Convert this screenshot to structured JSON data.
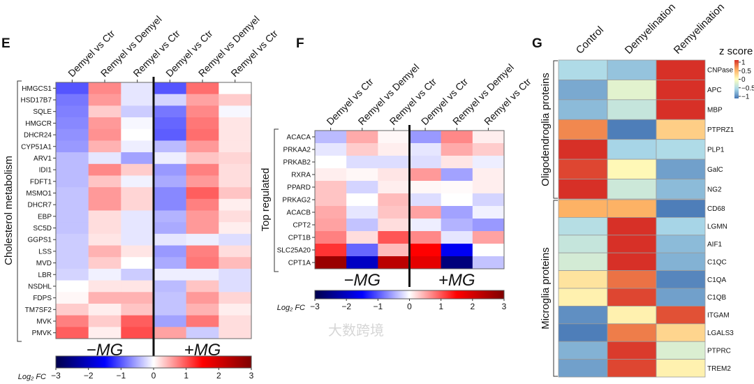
{
  "watermark": "大数跨境",
  "chart_data": [
    {
      "panel": "E",
      "type": "heatmap",
      "ylabel": "Cholesterol metabolism",
      "columns": [
        "Demyel vs Ctr",
        "Remyel vs Demyel",
        "Remyel vs Ctr",
        "Demyel vs Ctr",
        "Remyel vs Demyel",
        "Remyel vs Ctr"
      ],
      "groups": [
        "−MG",
        "+MG"
      ],
      "rows": [
        "HMGCS1",
        "HSD17B7",
        "SQLE",
        "HMGCR",
        "DHCR24",
        "CYP51A1",
        "ARV1",
        "IDI1",
        "FDFT1",
        "MSMO1",
        "DHCR7",
        "EBP",
        "SC5D",
        "GGPS1",
        "LSS",
        "MVD",
        "LBR",
        "NSDHL",
        "FDPS",
        "TM7SF2",
        "MVK",
        "PMVK"
      ],
      "values": [
        [
          -1.0,
          0.7,
          -0.15,
          -1.0,
          0.85,
          0
        ],
        [
          -0.8,
          0.6,
          -0.15,
          -0.25,
          0.55,
          0.3
        ],
        [
          -0.75,
          0.3,
          -0.3,
          -0.8,
          0.7,
          -0.05
        ],
        [
          -0.7,
          0.6,
          -0.05,
          -0.9,
          0.8,
          0.15
        ],
        [
          -0.65,
          0.65,
          0,
          -0.95,
          0.85,
          0.15
        ],
        [
          -0.6,
          0.45,
          -0.1,
          -0.4,
          0.6,
          0.15
        ],
        [
          -0.4,
          -0.15,
          -0.55,
          -0.1,
          0.35,
          0.25
        ],
        [
          -0.4,
          0.7,
          0.3,
          -0.6,
          0.75,
          0.2
        ],
        [
          -0.4,
          0.35,
          -0.08,
          -0.5,
          0.6,
          0.2
        ],
        [
          -0.35,
          0.6,
          0.25,
          -0.7,
          0.95,
          0.35
        ],
        [
          -0.35,
          0.6,
          0.25,
          -0.7,
          0.75,
          0.1
        ],
        [
          -0.35,
          0.2,
          -0.15,
          -0.45,
          0.6,
          0.2
        ],
        [
          -0.35,
          0.2,
          -0.15,
          -0.5,
          0.6,
          0.1
        ],
        [
          -0.3,
          0.15,
          -0.15,
          -0.15,
          -0.1,
          -0.2
        ],
        [
          -0.3,
          0.45,
          0.15,
          -0.6,
          0.75,
          0.2
        ],
        [
          -0.3,
          0.3,
          0,
          -0.5,
          0.8,
          0.4
        ],
        [
          -0.25,
          -0.08,
          -0.3,
          -0.1,
          -0.1,
          -0.2
        ],
        [
          0,
          0.15,
          0.15,
          -0.4,
          0.35,
          -0.2
        ],
        [
          0.05,
          0.45,
          0.45,
          -0.35,
          0.6,
          0.25
        ],
        [
          0.3,
          0.1,
          0.35,
          -0.35,
          0.45,
          0.1
        ],
        [
          0.75,
          0.3,
          0.95,
          -0.55,
          0.8,
          0.2
        ],
        [
          0.95,
          0.1,
          1.05,
          0.55,
          -0.3,
          0.2
        ]
      ],
      "colorbar": {
        "label": "Log₂ FC",
        "range": [
          -3,
          3
        ],
        "ticks": [
          "−3",
          "−2",
          "−1",
          "0",
          "1",
          "2",
          "3"
        ],
        "colormap": "seismic"
      }
    },
    {
      "panel": "F",
      "type": "heatmap",
      "ylabel": "Top regulated",
      "columns": [
        "Demyel vs Ctr",
        "Remyel vs Demyel",
        "Remyel vs Ctr",
        "Demyel vs Ctr",
        "Remyel vs Demyel",
        "Remyel vs Ctr"
      ],
      "groups": [
        "−MG",
        "+MG"
      ],
      "rows": [
        "ACACA",
        "PRKAA2",
        "PRKAB2",
        "RXRA",
        "PPARD",
        "PRKAG2",
        "ACACB",
        "CPT2",
        "CPT1B",
        "SLC25A20",
        "CPT1A"
      ],
      "values": [
        [
          -0.4,
          0.5,
          0.05,
          -0.6,
          0.7,
          0.1
        ],
        [
          -0.15,
          0.3,
          0.1,
          -0.15,
          0.5,
          0.3
        ],
        [
          0,
          -0.2,
          -0.2,
          -0.2,
          0.15,
          -0.1
        ],
        [
          0.1,
          0.05,
          0.15,
          0.6,
          -0.55,
          0.1
        ],
        [
          0.35,
          -0.25,
          0.1,
          0.05,
          0.03,
          0.1
        ],
        [
          0.35,
          0,
          0.4,
          -0.2,
          0,
          -0.25
        ],
        [
          0.5,
          -0.15,
          0.35,
          0.55,
          -0.55,
          -0.08
        ],
        [
          0.55,
          -0.35,
          0.2,
          -0.1,
          -0.45,
          -0.6
        ],
        [
          0.75,
          0.2,
          1.0,
          0.7,
          -0.15,
          0.55
        ],
        [
          1.2,
          -0.9,
          0.4,
          1.5,
          -1.6,
          0
        ],
        [
          2.7,
          -2.0,
          2.3,
          1.8,
          -2.6,
          -0.35
        ]
      ],
      "colorbar": {
        "label": "Log₂ FC",
        "range": [
          -3,
          3
        ],
        "ticks": [
          "−3",
          "−2",
          "−1",
          "0",
          "1",
          "2",
          "3"
        ],
        "colormap": "seismic"
      }
    },
    {
      "panel": "G",
      "type": "heatmap",
      "columns": [
        "Control",
        "Demyelination",
        "Remyelination"
      ],
      "row_groups": [
        {
          "label": "Oligodendroglia proteins",
          "rows": [
            "CNPase",
            "APC",
            "MBP",
            "PTPRZ1",
            "PLP1",
            "GalC",
            "NG2"
          ]
        },
        {
          "label": "Microglia proteins",
          "rows": [
            "CD68",
            "LGMN",
            "AIF1",
            "C1QC",
            "C1QA",
            "C1QB",
            "ITGAM",
            "LGALS3",
            "PTPRC",
            "TREM2"
          ]
        }
      ],
      "values": [
        [
          -0.55,
          -0.7,
          1.15
        ],
        [
          -0.85,
          -0.2,
          1.15
        ],
        [
          -0.75,
          -0.4,
          1.15
        ],
        [
          0.75,
          -1.1,
          0.35
        ],
        [
          1.15,
          -0.6,
          -0.55
        ],
        [
          1.05,
          0.05,
          -0.9
        ],
        [
          1.15,
          -0.35,
          -0.75
        ],
        [
          0.55,
          0.55,
          -1.1
        ],
        [
          -0.5,
          1.15,
          -0.6
        ],
        [
          -0.4,
          1.15,
          -0.75
        ],
        [
          -0.3,
          1.15,
          -0.8
        ],
        [
          0.2,
          0.85,
          -1.05
        ],
        [
          0.1,
          1.05,
          -0.9
        ],
        [
          -1.0,
          0.1,
          1.0
        ],
        [
          -1.1,
          0.8,
          0.3
        ],
        [
          -0.8,
          1.1,
          -0.25
        ],
        [
          -0.9,
          1.05,
          0.1
        ]
      ],
      "colorbar": {
        "label": "z score",
        "range": [
          -1.15,
          1.15
        ],
        "ticks": [
          "1",
          "0.5",
          "0",
          "−0.5",
          "−1"
        ],
        "colormap": "RdYlBu_r"
      }
    }
  ]
}
